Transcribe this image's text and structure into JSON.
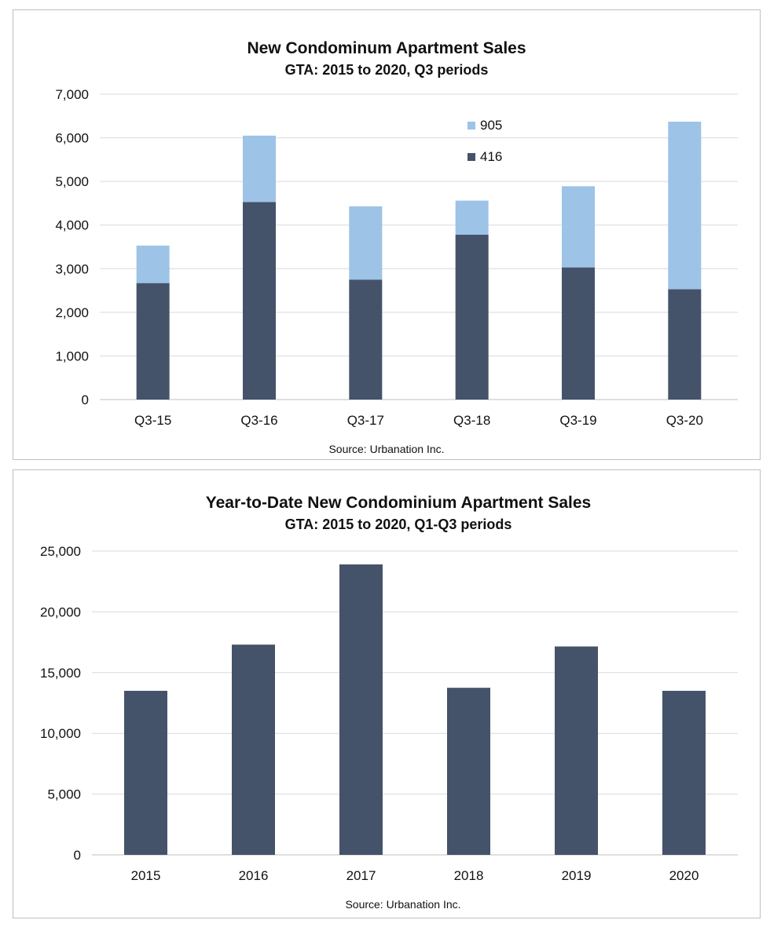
{
  "chart_data": [
    {
      "type": "bar",
      "stacked": true,
      "title": "New Condominum Apartment Sales",
      "subtitle": "GTA: 2015 to 2020, Q3 periods",
      "source": "Source: Urbanation Inc.",
      "categories": [
        "Q3-15",
        "Q3-16",
        "Q3-17",
        "Q3-18",
        "Q3-19",
        "Q3-20"
      ],
      "series": [
        {
          "name": "416",
          "values": [
            2670,
            4530,
            2750,
            3780,
            3030,
            2530
          ],
          "color": "#44536a"
        },
        {
          "name": "905",
          "values": [
            860,
            1520,
            1680,
            780,
            1860,
            3840
          ],
          "color": "#9dc3e6"
        }
      ],
      "legend_order": [
        "905",
        "416"
      ],
      "legend_position": "top-right",
      "ylim": [
        0,
        7000
      ],
      "yticks": [
        0,
        1000,
        2000,
        3000,
        4000,
        5000,
        6000,
        7000
      ],
      "ytick_labels": [
        "0",
        "1,000",
        "2,000",
        "3,000",
        "4,000",
        "5,000",
        "6,000",
        "7,000"
      ],
      "grid": true
    },
    {
      "type": "bar",
      "stacked": false,
      "title": "Year-to-Date New Condominium Apartment Sales",
      "subtitle": "GTA: 2015 to 2020, Q1-Q3 periods",
      "source": "Source: Urbanation Inc.",
      "categories": [
        "2015",
        "2016",
        "2017",
        "2018",
        "2019",
        "2020"
      ],
      "series": [
        {
          "values": [
            13500,
            17300,
            23900,
            13750,
            17150,
            13500
          ],
          "color": "#44536a"
        }
      ],
      "ylim": [
        0,
        25000
      ],
      "yticks": [
        0,
        5000,
        10000,
        15000,
        20000,
        25000
      ],
      "ytick_labels": [
        "0",
        "5,000",
        "10,000",
        "15,000",
        "20,000",
        "25,000"
      ],
      "grid": true
    }
  ]
}
